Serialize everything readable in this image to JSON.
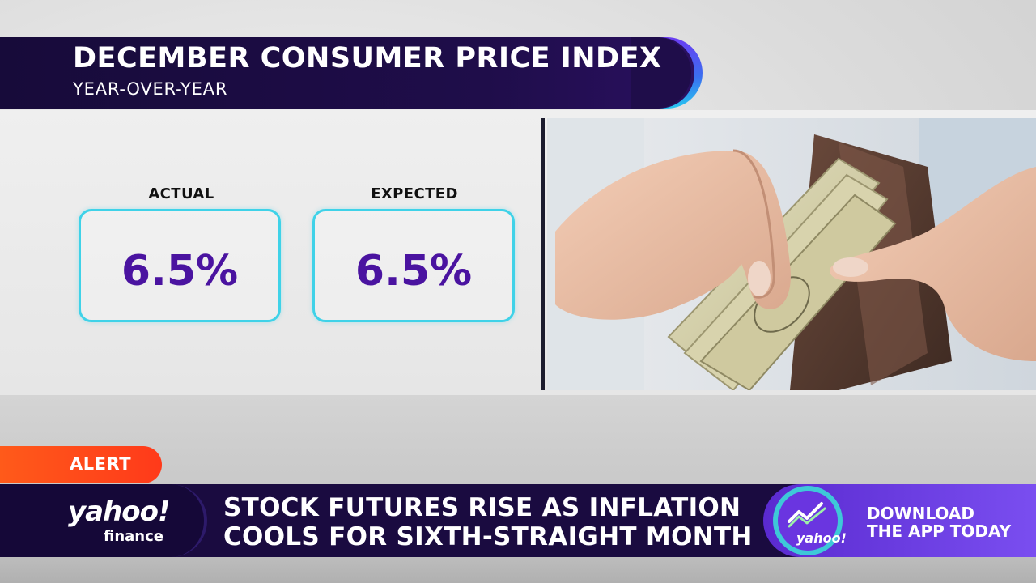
{
  "header": {
    "title": "DECEMBER CONSUMER PRICE INDEX",
    "subtitle": "YEAR-OVER-YEAR"
  },
  "metrics": [
    {
      "label": "ACTUAL",
      "value": "6.5%"
    },
    {
      "label": "EXPECTED",
      "value": "6.5%"
    }
  ],
  "photo": {
    "icon": "wallet-cash-photo"
  },
  "alert": {
    "label": "ALERT"
  },
  "ticker": {
    "brand": {
      "name": "yahoo!",
      "sub": "finance"
    },
    "headline_lines": [
      "STOCK FUTURES RISE AS INFLATION",
      "COOLS FOR SIXTH-STRAIGHT MONTH"
    ]
  },
  "promo": {
    "icon_label": "yahoo!",
    "lines": [
      "DOWNLOAD",
      "THE APP TODAY"
    ]
  },
  "colors": {
    "navy": "#1a0b40",
    "value_purple": "#4a13a0",
    "box_cyan": "#3fd2e8",
    "alert_orange": "#ff4a1a",
    "promo_purple": "#6a35e0"
  }
}
